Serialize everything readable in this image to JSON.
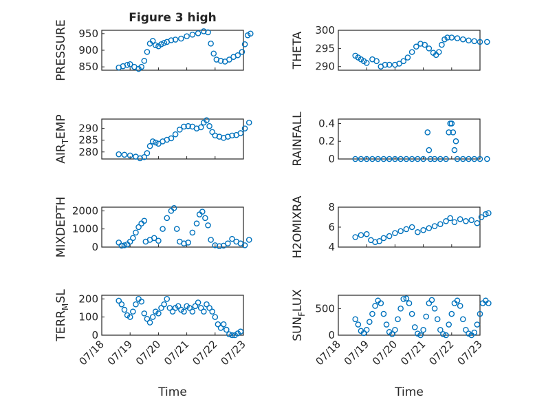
{
  "chart_data": {
    "type": "scatter",
    "title": "Figure 3 high",
    "xlabel": "Time",
    "x_ticks": [
      "07/18",
      "07/19",
      "07/20",
      "07/21",
      "07/22",
      "07/23"
    ],
    "x_range": [
      "07/18",
      "07/23"
    ],
    "grid": true,
    "marker": "open-circle",
    "marker_color": "#0072BD",
    "panels": [
      {
        "id": "pressure",
        "ylabel": "PRESSURE",
        "ylim": [
          840,
          960
        ],
        "yticks": [
          850,
          900,
          950
        ]
      },
      {
        "id": "theta",
        "ylabel": "THETA",
        "ylim": [
          289,
          300
        ],
        "yticks": [
          290,
          295,
          300
        ]
      },
      {
        "id": "air_temp",
        "ylabel": "AIR_TEMP",
        "ylabel_main": "AIR",
        "ylabel_sub": "T",
        "ylabel_rest": "EMP",
        "ylim": [
          277,
          294
        ],
        "yticks": [
          280,
          285,
          290
        ]
      },
      {
        "id": "rainfall",
        "ylabel": "RAINFALL",
        "ylim": [
          0,
          0.45
        ],
        "yticks": [
          0,
          0.2,
          0.4
        ]
      },
      {
        "id": "mixdepth",
        "ylabel": "MIXDEPTH",
        "ylim": [
          0,
          2200
        ],
        "yticks": [
          0,
          1000,
          2000
        ]
      },
      {
        "id": "h2omixra",
        "ylabel": "H2OMIXRA",
        "ylim": [
          4,
          8
        ],
        "yticks": [
          4,
          6,
          8
        ]
      },
      {
        "id": "terr_msl",
        "ylabel": "TERR_MSL",
        "ylabel_main": "TERR",
        "ylabel_sub": "M",
        "ylabel_rest": "SL",
        "ylim": [
          0,
          220
        ],
        "yticks": [
          0,
          100,
          200
        ]
      },
      {
        "id": "sun_flux",
        "ylabel": "SUN_FLUX",
        "ylabel_main": "SUN",
        "ylabel_sub": "F",
        "ylabel_rest": "LUX",
        "ylim": [
          0,
          750
        ],
        "yticks": [
          0,
          500
        ]
      }
    ],
    "series": {
      "pressure": [
        [
          0.6,
          848
        ],
        [
          0.75,
          852
        ],
        [
          0.9,
          856
        ],
        [
          1.0,
          858
        ],
        [
          1.15,
          850
        ],
        [
          1.3,
          844
        ],
        [
          1.4,
          850
        ],
        [
          1.5,
          868
        ],
        [
          1.6,
          895
        ],
        [
          1.7,
          920
        ],
        [
          1.8,
          928
        ],
        [
          1.9,
          915
        ],
        [
          2.0,
          912
        ],
        [
          2.1,
          918
        ],
        [
          2.2,
          922
        ],
        [
          2.3,
          925
        ],
        [
          2.45,
          930
        ],
        [
          2.6,
          932
        ],
        [
          2.8,
          935
        ],
        [
          3.0,
          942
        ],
        [
          3.2,
          947
        ],
        [
          3.4,
          951
        ],
        [
          3.6,
          957
        ],
        [
          3.75,
          954
        ],
        [
          3.85,
          920
        ],
        [
          3.95,
          890
        ],
        [
          4.05,
          872
        ],
        [
          4.2,
          868
        ],
        [
          4.35,
          866
        ],
        [
          4.5,
          872
        ],
        [
          4.65,
          880
        ],
        [
          4.8,
          885
        ],
        [
          4.95,
          895
        ],
        [
          5.05,
          918
        ],
        [
          5.15,
          945
        ],
        [
          5.25,
          950
        ]
      ],
      "theta": [
        [
          0.6,
          293
        ],
        [
          0.7,
          292.5
        ],
        [
          0.8,
          292
        ],
        [
          0.9,
          291.5
        ],
        [
          1.0,
          291
        ],
        [
          1.2,
          292
        ],
        [
          1.35,
          291.5
        ],
        [
          1.5,
          290
        ],
        [
          1.65,
          290.5
        ],
        [
          1.8,
          290.5
        ],
        [
          2.0,
          290.5
        ],
        [
          2.15,
          290.8
        ],
        [
          2.3,
          291.5
        ],
        [
          2.45,
          292.5
        ],
        [
          2.6,
          294
        ],
        [
          2.75,
          295.5
        ],
        [
          2.9,
          296.3
        ],
        [
          3.05,
          296
        ],
        [
          3.2,
          295
        ],
        [
          3.35,
          293.8
        ],
        [
          3.45,
          293.2
        ],
        [
          3.55,
          294
        ],
        [
          3.65,
          296
        ],
        [
          3.75,
          297.5
        ],
        [
          3.85,
          298
        ],
        [
          4.0,
          298
        ],
        [
          4.2,
          297.8
        ],
        [
          4.4,
          297.5
        ],
        [
          4.6,
          297.2
        ],
        [
          4.8,
          297
        ],
        [
          5.0,
          296.8
        ],
        [
          5.25,
          296.8
        ]
      ],
      "air_temp": [
        [
          0.6,
          279
        ],
        [
          0.8,
          278.8
        ],
        [
          1.0,
          278.5
        ],
        [
          1.2,
          278
        ],
        [
          1.35,
          277.3
        ],
        [
          1.5,
          277.8
        ],
        [
          1.6,
          279.5
        ],
        [
          1.7,
          282.5
        ],
        [
          1.8,
          284.5
        ],
        [
          1.9,
          284
        ],
        [
          2.0,
          283.5
        ],
        [
          2.15,
          284.5
        ],
        [
          2.3,
          285.2
        ],
        [
          2.45,
          285.8
        ],
        [
          2.6,
          287.5
        ],
        [
          2.75,
          289.5
        ],
        [
          2.9,
          290.8
        ],
        [
          3.05,
          291
        ],
        [
          3.2,
          290.8
        ],
        [
          3.35,
          290
        ],
        [
          3.5,
          290.5
        ],
        [
          3.6,
          292.5
        ],
        [
          3.7,
          293.5
        ],
        [
          3.8,
          291
        ],
        [
          3.9,
          288.5
        ],
        [
          4.0,
          287
        ],
        [
          4.15,
          286.5
        ],
        [
          4.3,
          286
        ],
        [
          4.45,
          286.5
        ],
        [
          4.6,
          287
        ],
        [
          4.75,
          287.2
        ],
        [
          4.9,
          288
        ],
        [
          5.05,
          290
        ],
        [
          5.2,
          292.5
        ]
      ],
      "rainfall": [
        [
          0.6,
          0
        ],
        [
          0.8,
          0
        ],
        [
          1.0,
          0
        ],
        [
          1.2,
          0
        ],
        [
          1.4,
          0
        ],
        [
          1.6,
          0
        ],
        [
          1.8,
          0
        ],
        [
          2.0,
          0
        ],
        [
          2.2,
          0
        ],
        [
          2.4,
          0
        ],
        [
          2.6,
          0
        ],
        [
          2.8,
          0
        ],
        [
          3.0,
          0
        ],
        [
          3.15,
          0.3
        ],
        [
          3.2,
          0.1
        ],
        [
          3.25,
          0
        ],
        [
          3.4,
          0
        ],
        [
          3.6,
          0
        ],
        [
          3.8,
          0
        ],
        [
          3.9,
          0.3
        ],
        [
          3.95,
          0.4
        ],
        [
          4.0,
          0.4
        ],
        [
          4.05,
          0.3
        ],
        [
          4.1,
          0.1
        ],
        [
          4.15,
          0.2
        ],
        [
          4.2,
          0
        ],
        [
          4.4,
          0
        ],
        [
          4.6,
          0
        ],
        [
          4.8,
          0
        ],
        [
          5.0,
          0
        ],
        [
          5.25,
          0
        ]
      ],
      "mixdepth": [
        [
          0.6,
          250
        ],
        [
          0.7,
          80
        ],
        [
          0.8,
          100
        ],
        [
          0.9,
          150
        ],
        [
          1.0,
          300
        ],
        [
          1.1,
          500
        ],
        [
          1.2,
          800
        ],
        [
          1.3,
          1100
        ],
        [
          1.4,
          1300
        ],
        [
          1.5,
          1450
        ],
        [
          1.55,
          300
        ],
        [
          1.7,
          400
        ],
        [
          1.85,
          500
        ],
        [
          2.0,
          350
        ],
        [
          2.15,
          1000
        ],
        [
          2.3,
          1600
        ],
        [
          2.45,
          2000
        ],
        [
          2.55,
          2150
        ],
        [
          2.65,
          1000
        ],
        [
          2.75,
          300
        ],
        [
          2.9,
          200
        ],
        [
          3.05,
          250
        ],
        [
          3.2,
          800
        ],
        [
          3.35,
          1300
        ],
        [
          3.45,
          1800
        ],
        [
          3.55,
          1950
        ],
        [
          3.65,
          1600
        ],
        [
          3.75,
          1200
        ],
        [
          3.85,
          400
        ],
        [
          4.0,
          100
        ],
        [
          4.15,
          50
        ],
        [
          4.3,
          80
        ],
        [
          4.45,
          200
        ],
        [
          4.6,
          450
        ],
        [
          4.75,
          300
        ],
        [
          4.9,
          200
        ],
        [
          5.05,
          100
        ],
        [
          5.2,
          400
        ]
      ],
      "h2omixra": [
        [
          0.6,
          5.0
        ],
        [
          0.8,
          5.2
        ],
        [
          1.0,
          5.3
        ],
        [
          1.15,
          4.7
        ],
        [
          1.3,
          4.5
        ],
        [
          1.45,
          4.6
        ],
        [
          1.6,
          4.9
        ],
        [
          1.8,
          5.1
        ],
        [
          2.0,
          5.4
        ],
        [
          2.2,
          5.6
        ],
        [
          2.4,
          5.8
        ],
        [
          2.6,
          6.0
        ],
        [
          2.8,
          5.5
        ],
        [
          3.0,
          5.7
        ],
        [
          3.2,
          5.9
        ],
        [
          3.4,
          6.1
        ],
        [
          3.6,
          6.3
        ],
        [
          3.8,
          6.6
        ],
        [
          3.95,
          6.9
        ],
        [
          4.1,
          6.5
        ],
        [
          4.3,
          6.8
        ],
        [
          4.5,
          6.6
        ],
        [
          4.7,
          6.7
        ],
        [
          4.9,
          6.4
        ],
        [
          5.05,
          7.0
        ],
        [
          5.2,
          7.3
        ],
        [
          5.3,
          7.4
        ]
      ],
      "terr_msl": [
        [
          0.6,
          190
        ],
        [
          0.7,
          170
        ],
        [
          0.8,
          140
        ],
        [
          0.9,
          110
        ],
        [
          1.0,
          100
        ],
        [
          1.1,
          130
        ],
        [
          1.2,
          170
        ],
        [
          1.3,
          200
        ],
        [
          1.4,
          185
        ],
        [
          1.5,
          120
        ],
        [
          1.6,
          90
        ],
        [
          1.7,
          70
        ],
        [
          1.8,
          100
        ],
        [
          1.9,
          130
        ],
        [
          2.0,
          120
        ],
        [
          2.1,
          150
        ],
        [
          2.2,
          170
        ],
        [
          2.3,
          200
        ],
        [
          2.4,
          150
        ],
        [
          2.5,
          130
        ],
        [
          2.6,
          150
        ],
        [
          2.7,
          160
        ],
        [
          2.8,
          140
        ],
        [
          2.9,
          130
        ],
        [
          3.0,
          160
        ],
        [
          3.1,
          150
        ],
        [
          3.2,
          130
        ],
        [
          3.3,
          160
        ],
        [
          3.4,
          180
        ],
        [
          3.5,
          150
        ],
        [
          3.6,
          130
        ],
        [
          3.7,
          170
        ],
        [
          3.8,
          150
        ],
        [
          3.9,
          130
        ],
        [
          4.0,
          100
        ],
        [
          4.1,
          60
        ],
        [
          4.2,
          40
        ],
        [
          4.3,
          60
        ],
        [
          4.4,
          30
        ],
        [
          4.5,
          5
        ],
        [
          4.6,
          0
        ],
        [
          4.7,
          0
        ],
        [
          4.8,
          10
        ],
        [
          4.9,
          20
        ]
      ],
      "sun_flux": [
        [
          0.6,
          300
        ],
        [
          0.7,
          200
        ],
        [
          0.8,
          80
        ],
        [
          0.9,
          40
        ],
        [
          1.0,
          100
        ],
        [
          1.1,
          250
        ],
        [
          1.2,
          400
        ],
        [
          1.3,
          550
        ],
        [
          1.4,
          650
        ],
        [
          1.5,
          600
        ],
        [
          1.6,
          400
        ],
        [
          1.7,
          200
        ],
        [
          1.8,
          60
        ],
        [
          1.9,
          20
        ],
        [
          2.0,
          100
        ],
        [
          2.1,
          300
        ],
        [
          2.2,
          500
        ],
        [
          2.3,
          680
        ],
        [
          2.4,
          690
        ],
        [
          2.5,
          600
        ],
        [
          2.6,
          400
        ],
        [
          2.7,
          150
        ],
        [
          2.8,
          30
        ],
        [
          2.9,
          0
        ],
        [
          3.0,
          100
        ],
        [
          3.1,
          350
        ],
        [
          3.2,
          600
        ],
        [
          3.3,
          660
        ],
        [
          3.4,
          500
        ],
        [
          3.5,
          300
        ],
        [
          3.6,
          100
        ],
        [
          3.7,
          20
        ],
        [
          3.8,
          0
        ],
        [
          3.9,
          200
        ],
        [
          4.0,
          400
        ],
        [
          4.1,
          600
        ],
        [
          4.2,
          650
        ],
        [
          4.3,
          550
        ],
        [
          4.4,
          300
        ],
        [
          4.5,
          100
        ],
        [
          4.6,
          30
        ],
        [
          4.7,
          0
        ],
        [
          4.8,
          50
        ],
        [
          4.9,
          200
        ],
        [
          5.0,
          400
        ],
        [
          5.1,
          600
        ],
        [
          5.2,
          650
        ],
        [
          5.3,
          600
        ]
      ]
    }
  }
}
